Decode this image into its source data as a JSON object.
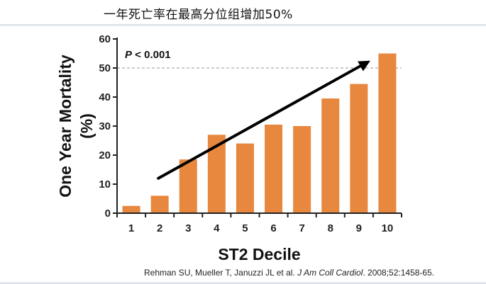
{
  "headline": "一年死亡率在最高分位组增加50%",
  "citation": {
    "authors": "Rehman SU, Mueller T, Januzzi JL et al.",
    "journal": "J Am Coll Cardiol",
    "details": ". 2008;52:1458-65."
  },
  "colors": {
    "bar": "#E8873E",
    "axis": "#222222",
    "reference_line": "#9a9a9a",
    "arrow": "#000000"
  },
  "chart_data": {
    "type": "bar",
    "categories": [
      "1",
      "2",
      "3",
      "4",
      "5",
      "6",
      "7",
      "8",
      "9",
      "10"
    ],
    "values": [
      2.5,
      6,
      18.5,
      27,
      24,
      30.5,
      30,
      39.5,
      44.5,
      55
    ],
    "title": "",
    "xlabel": "ST2 Decile",
    "ylabel": "One Year Mortality (%)",
    "ylim": [
      0,
      60
    ],
    "yticks": [
      0,
      10,
      20,
      30,
      40,
      50,
      60
    ],
    "annotation": {
      "prefix": "P",
      "text": " < 0.001"
    },
    "reference_line": {
      "y": 50,
      "style": "dashed"
    },
    "trend_arrow": {
      "from": {
        "category": "2",
        "value": 12
      },
      "to": {
        "category": "10",
        "value": 52.5
      }
    },
    "grid": false,
    "legend": "none"
  }
}
